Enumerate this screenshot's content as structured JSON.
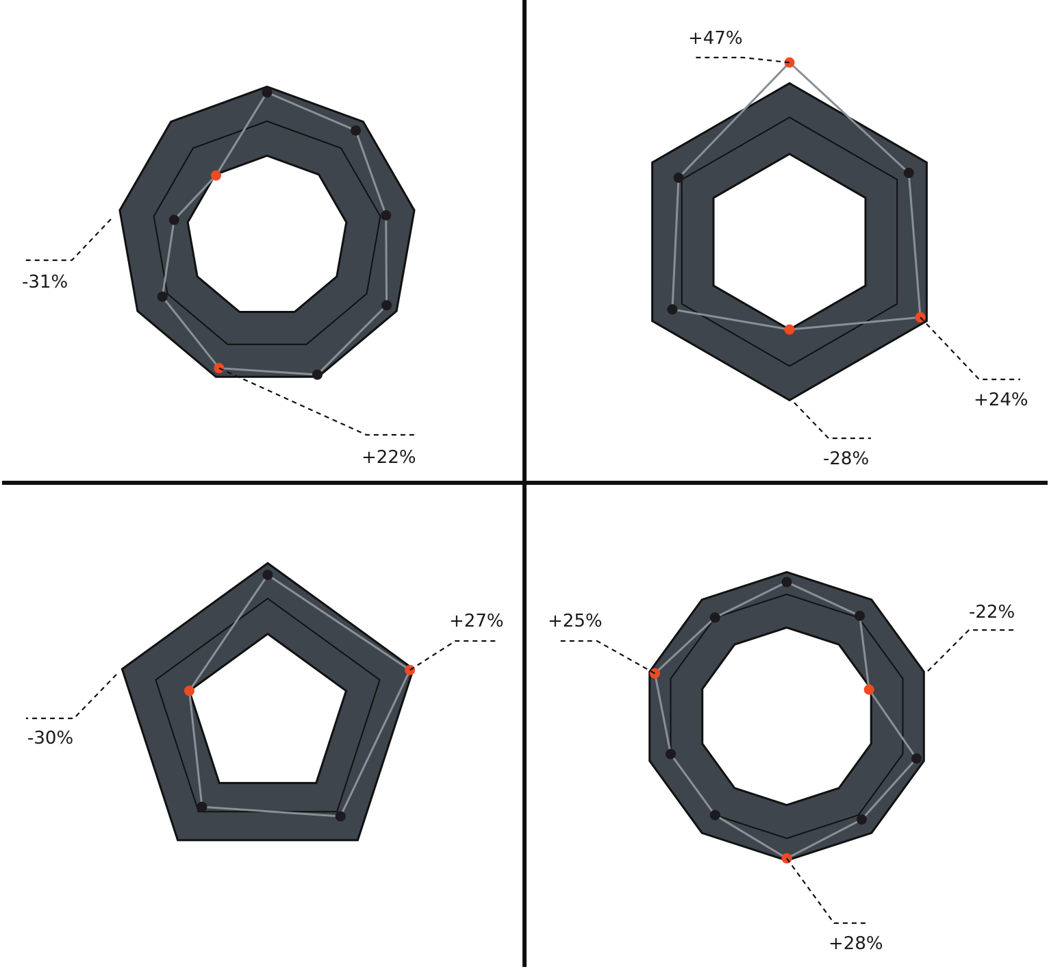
{
  "colors": {
    "band": "#3e454d",
    "outline": "#111111",
    "profile": "#8a9096",
    "point": "#1c1a1e",
    "highlight": "#ef4a23",
    "divider": "#111111",
    "leader": "#111111"
  },
  "chart_data": [
    {
      "type": "radar",
      "axes": 9,
      "band": [
        0.7,
        1.3
      ],
      "median": 1.0,
      "values": [
        1.25,
        1.2,
        1.05,
        1.2,
        1.28,
        1.22,
        1.05,
        0.82,
        0.69
      ],
      "highlights": [
        {
          "index": 5,
          "label": "+22%"
        },
        {
          "index": 8,
          "label": "-31%"
        }
      ]
    },
    {
      "type": "radar",
      "axes": 6,
      "band": [
        0.72,
        1.3
      ],
      "median": 1.02,
      "values": [
        1.47,
        1.13,
        1.24,
        0.72,
        1.11,
        1.05
      ],
      "highlights": [
        {
          "index": 0,
          "label": "+47%"
        },
        {
          "index": 2,
          "label": "+24%"
        },
        {
          "index": 3,
          "label": "-28%"
        }
      ]
    },
    {
      "type": "radar",
      "axes": 5,
      "band": [
        0.7,
        1.3
      ],
      "median": 1.0,
      "values": [
        1.2,
        1.27,
        1.05,
        0.95,
        0.7
      ],
      "highlights": [
        {
          "index": 1,
          "label": "+27%"
        },
        {
          "index": 4,
          "label": "-30%"
        }
      ]
    },
    {
      "type": "radar",
      "axes": 10,
      "band": [
        0.8,
        1.3
      ],
      "median": 1.1,
      "values": [
        1.21,
        1.12,
        0.78,
        1.23,
        1.15,
        1.28,
        1.1,
        1.1,
        1.25,
        1.1
      ],
      "highlights": [
        {
          "index": 2,
          "label": "-22%"
        },
        {
          "index": 5,
          "label": "+28%"
        },
        {
          "index": 8,
          "label": "+25%"
        }
      ]
    }
  ]
}
